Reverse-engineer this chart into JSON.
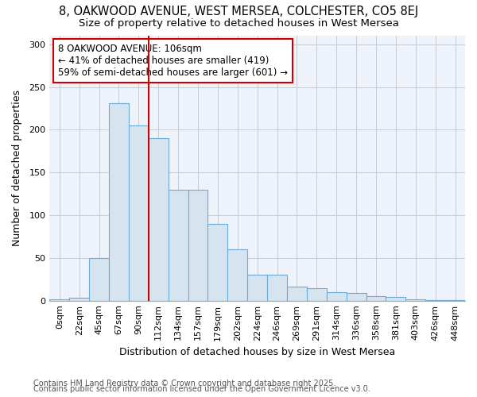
{
  "title_line1": "8, OAKWOOD AVENUE, WEST MERSEA, COLCHESTER, CO5 8EJ",
  "title_line2": "Size of property relative to detached houses in West Mersea",
  "xlabel": "Distribution of detached houses by size in West Mersea",
  "ylabel": "Number of detached properties",
  "bin_labels": [
    "0sqm",
    "22sqm",
    "45sqm",
    "67sqm",
    "90sqm",
    "112sqm",
    "134sqm",
    "157sqm",
    "179sqm",
    "202sqm",
    "224sqm",
    "246sqm",
    "269sqm",
    "291sqm",
    "314sqm",
    "336sqm",
    "358sqm",
    "381sqm",
    "403sqm",
    "426sqm",
    "448sqm"
  ],
  "bar_values": [
    2,
    3,
    50,
    231,
    205,
    190,
    130,
    130,
    90,
    60,
    30,
    30,
    16,
    15,
    10,
    9,
    5,
    4,
    2,
    1,
    1
  ],
  "bar_color": "#d6e4f0",
  "bar_edge_color": "#6aaad4",
  "red_line_color": "#cc0000",
  "red_line_x": 4.5,
  "annotation_text": "8 OAKWOOD AVENUE: 106sqm\n← 41% of detached houses are smaller (419)\n59% of semi-detached houses are larger (601) →",
  "annotation_box_color": "#ffffff",
  "annotation_box_edge": "#cc0000",
  "ylim": [
    0,
    310
  ],
  "yticks": [
    0,
    50,
    100,
    150,
    200,
    250,
    300
  ],
  "grid_color": "#c8ccd0",
  "background_color": "#eef2fb",
  "fig_background_color": "#ffffff",
  "footer_line1": "Contains HM Land Registry data © Crown copyright and database right 2025.",
  "footer_line2": "Contains public sector information licensed under the Open Government Licence v3.0.",
  "title_fontsize": 10.5,
  "subtitle_fontsize": 9.5,
  "axis_label_fontsize": 9,
  "tick_fontsize": 8,
  "annotation_fontsize": 8.5,
  "footer_fontsize": 7
}
